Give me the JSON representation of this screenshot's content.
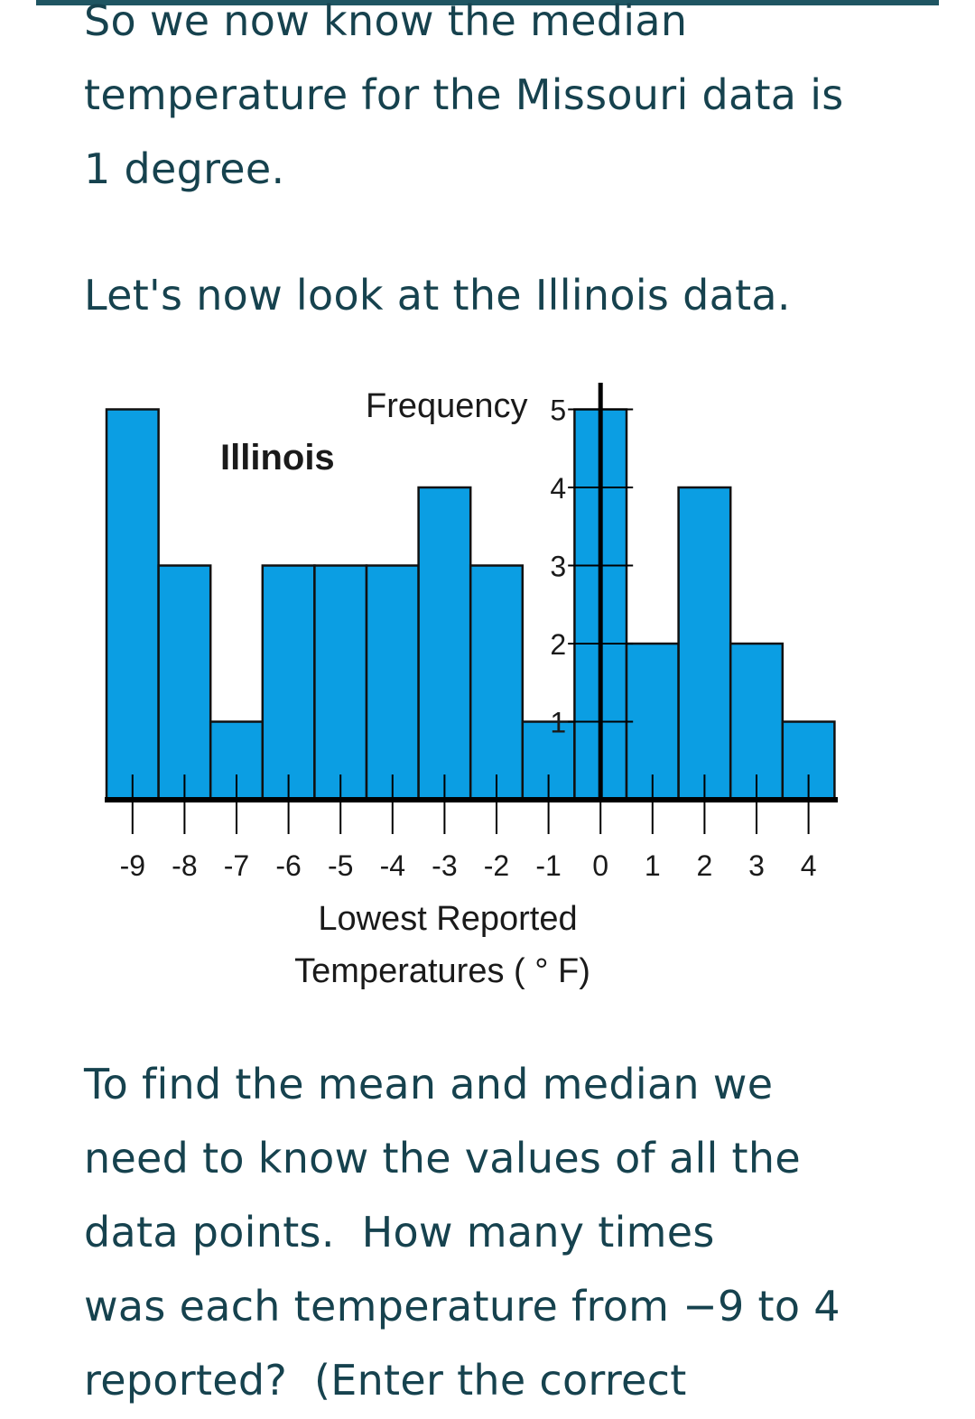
{
  "paragraphs": {
    "intro": [
      "So we now know the median",
      "temperature for the Missouri data is",
      "1 degree."
    ],
    "lead": [
      "Let's now look at the Illinois data."
    ],
    "question": [
      "To find the mean and median we",
      "need to know the values of all the",
      "data points.  How many times",
      "was each temperature from −9 to 4",
      "reported?  (Enter the correct"
    ]
  },
  "chart_data": {
    "type": "bar",
    "title": "Illinois",
    "ylabel": "Frequency",
    "xlabel": [
      "Lowest Reported",
      "Temperatures ( ° F)"
    ],
    "categories": [
      "-9",
      "-8",
      "-7",
      "-6",
      "-5",
      "-4",
      "-3",
      "-2",
      "-1",
      "0",
      "1",
      "2",
      "3",
      "4"
    ],
    "values": [
      5,
      3,
      1,
      3,
      3,
      3,
      4,
      3,
      1,
      5,
      2,
      4,
      2,
      1
    ],
    "ytick_labels": [
      "1",
      "2",
      "3",
      "4",
      "5"
    ],
    "ylim": [
      0,
      5
    ],
    "colors": {
      "bar": "#0b9ee3",
      "outline": "#111111"
    }
  }
}
